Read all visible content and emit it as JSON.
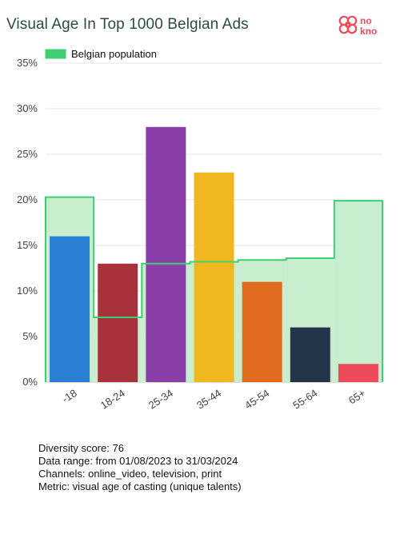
{
  "header": {
    "title": "Visual Age In Top 1000 Belgian Ads",
    "logo_text_top": "no",
    "logo_text_bottom": "kno"
  },
  "chart_data": {
    "type": "bar",
    "title": "Visual Age In Top 1000 Belgian Ads",
    "categories": [
      "-18",
      "18-24",
      "25-34",
      "35-44",
      "45-54",
      "55-64",
      "65+"
    ],
    "values": [
      16,
      13,
      28,
      23,
      11,
      6,
      2
    ],
    "bar_colors": [
      "#2a7fd4",
      "#a8323c",
      "#8a3fa8",
      "#f0b81e",
      "#e06a1e",
      "#263449",
      "#ee4b5a"
    ],
    "population_series": {
      "name": "Belgian population",
      "values": [
        20.3,
        7.1,
        13.0,
        13.2,
        13.4,
        13.6,
        19.9
      ],
      "line_color": "#3fcf73",
      "fill_color": "#c9eecf"
    },
    "yticks": [
      "0%",
      "5%",
      "10%",
      "15%",
      "20%",
      "25%",
      "30%",
      "35%"
    ],
    "ylim": [
      0,
      35
    ],
    "grid": true,
    "legend": {
      "position": "top-left",
      "label": "Belgian population"
    }
  },
  "info": {
    "diversity": "Diversity score: 76",
    "range": "Data range: from 01/08/2023 to 31/03/2024",
    "channels": "Channels: online_video, television, print",
    "metric": "Metric: visual age of casting (unique talents)"
  }
}
